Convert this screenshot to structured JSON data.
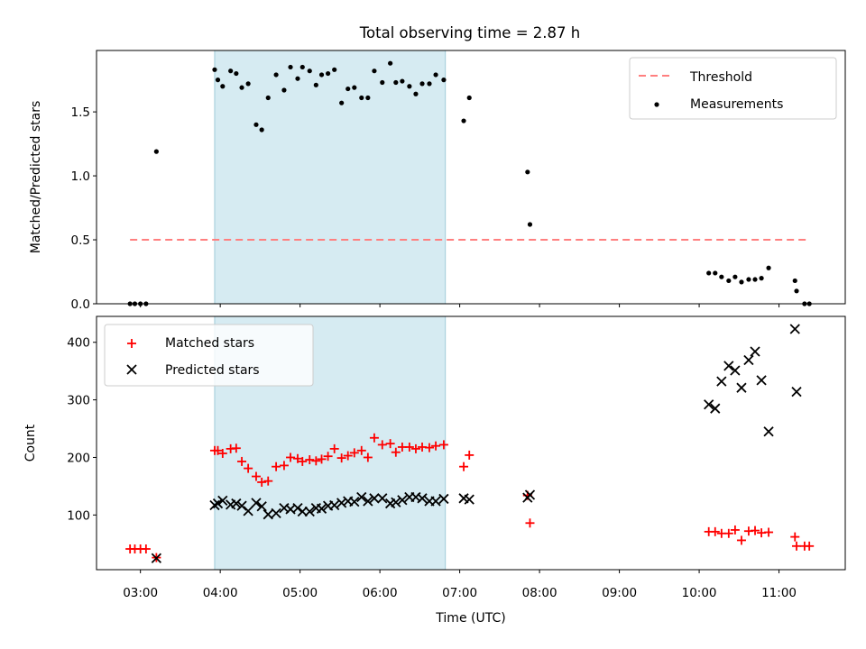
{
  "chart_data": {
    "type": "scatter",
    "title": "Total observing time = 2.87 h",
    "xlabel": "Time (UTC)",
    "x_unit": "hours UTC",
    "xlim": [
      2.45,
      11.83
    ],
    "x_ticks": [
      3,
      4,
      5,
      6,
      7,
      8,
      9,
      10,
      11
    ],
    "x_tick_labels": [
      "03:00",
      "04:00",
      "05:00",
      "06:00",
      "07:00",
      "08:00",
      "09:00",
      "10:00",
      "11:00"
    ],
    "shaded_region": {
      "x": [
        3.93,
        6.82
      ],
      "color": "#add8e6"
    },
    "panels": [
      {
        "ylabel": "Matched/Predicted stars",
        "ylim": [
          0,
          1.98
        ],
        "y_ticks": [
          0.0,
          0.5,
          1.0,
          1.5
        ],
        "y_tick_labels": [
          "0.0",
          "0.5",
          "1.0",
          "1.5"
        ],
        "legend_position": "upper right",
        "series": [
          {
            "name": "Threshold",
            "type": "line",
            "style": "dashed",
            "color": "#ff7f7f",
            "x": [
              2.87,
              11.38
            ],
            "y": [
              0.5,
              0.5
            ]
          },
          {
            "name": "Measurements",
            "type": "scatter",
            "marker": "dot",
            "color": "#000000",
            "points": [
              [
                2.87,
                0.0
              ],
              [
                2.93,
                0.0
              ],
              [
                3.0,
                0.0
              ],
              [
                3.07,
                0.0
              ],
              [
                3.2,
                1.19
              ],
              [
                3.93,
                1.83
              ],
              [
                3.97,
                1.75
              ],
              [
                4.03,
                1.7
              ],
              [
                4.13,
                1.82
              ],
              [
                4.2,
                1.8
              ],
              [
                4.27,
                1.69
              ],
              [
                4.35,
                1.72
              ],
              [
                4.45,
                1.4
              ],
              [
                4.52,
                1.36
              ],
              [
                4.6,
                1.61
              ],
              [
                4.7,
                1.79
              ],
              [
                4.8,
                1.67
              ],
              [
                4.88,
                1.85
              ],
              [
                4.97,
                1.76
              ],
              [
                5.03,
                1.85
              ],
              [
                5.12,
                1.82
              ],
              [
                5.2,
                1.71
              ],
              [
                5.27,
                1.79
              ],
              [
                5.35,
                1.8
              ],
              [
                5.43,
                1.83
              ],
              [
                5.52,
                1.57
              ],
              [
                5.6,
                1.68
              ],
              [
                5.68,
                1.69
              ],
              [
                5.77,
                1.61
              ],
              [
                5.85,
                1.61
              ],
              [
                5.93,
                1.82
              ],
              [
                6.03,
                1.73
              ],
              [
                6.13,
                1.88
              ],
              [
                6.2,
                1.73
              ],
              [
                6.28,
                1.74
              ],
              [
                6.37,
                1.7
              ],
              [
                6.45,
                1.64
              ],
              [
                6.53,
                1.72
              ],
              [
                6.62,
                1.72
              ],
              [
                6.7,
                1.79
              ],
              [
                6.8,
                1.75
              ],
              [
                7.05,
                1.43
              ],
              [
                7.12,
                1.61
              ],
              [
                7.85,
                1.03
              ],
              [
                7.88,
                0.62
              ],
              [
                10.12,
                0.24
              ],
              [
                10.2,
                0.24
              ],
              [
                10.28,
                0.21
              ],
              [
                10.37,
                0.18
              ],
              [
                10.45,
                0.21
              ],
              [
                10.53,
                0.17
              ],
              [
                10.62,
                0.19
              ],
              [
                10.7,
                0.19
              ],
              [
                10.78,
                0.2
              ],
              [
                10.87,
                0.28
              ],
              [
                11.2,
                0.18
              ],
              [
                11.22,
                0.1
              ],
              [
                11.32,
                0.0
              ],
              [
                11.38,
                0.0
              ]
            ]
          }
        ]
      },
      {
        "ylabel": "Count",
        "ylim": [
          5,
          445
        ],
        "y_ticks": [
          100,
          200,
          300,
          400
        ],
        "y_tick_labels": [
          "100",
          "200",
          "300",
          "400"
        ],
        "legend_position": "upper left",
        "series": [
          {
            "name": "Matched stars",
            "type": "scatter",
            "marker": "plus",
            "color": "#ff0000",
            "points": [
              [
                2.87,
                41
              ],
              [
                2.93,
                41
              ],
              [
                3.0,
                41
              ],
              [
                3.07,
                41
              ],
              [
                3.2,
                26
              ],
              [
                3.93,
                212
              ],
              [
                3.97,
                212
              ],
              [
                4.03,
                207
              ],
              [
                4.13,
                215
              ],
              [
                4.2,
                216
              ],
              [
                4.27,
                193
              ],
              [
                4.35,
                181
              ],
              [
                4.45,
                167
              ],
              [
                4.52,
                157
              ],
              [
                4.6,
                159
              ],
              [
                4.7,
                184
              ],
              [
                4.8,
                186
              ],
              [
                4.88,
                200
              ],
              [
                4.97,
                198
              ],
              [
                5.03,
                193
              ],
              [
                5.12,
                196
              ],
              [
                5.2,
                194
              ],
              [
                5.27,
                197
              ],
              [
                5.35,
                202
              ],
              [
                5.43,
                215
              ],
              [
                5.52,
                199
              ],
              [
                5.6,
                203
              ],
              [
                5.68,
                208
              ],
              [
                5.77,
                212
              ],
              [
                5.85,
                200
              ],
              [
                5.93,
                234
              ],
              [
                6.03,
                222
              ],
              [
                6.13,
                224
              ],
              [
                6.2,
                209
              ],
              [
                6.28,
                218
              ],
              [
                6.37,
                218
              ],
              [
                6.45,
                215
              ],
              [
                6.53,
                218
              ],
              [
                6.62,
                217
              ],
              [
                6.7,
                220
              ],
              [
                6.8,
                222
              ],
              [
                7.05,
                184
              ],
              [
                7.12,
                204
              ],
              [
                7.85,
                134
              ],
              [
                7.88,
                86
              ],
              [
                10.12,
                71
              ],
              [
                10.2,
                71
              ],
              [
                10.28,
                68
              ],
              [
                10.37,
                68
              ],
              [
                10.45,
                74
              ],
              [
                10.53,
                56
              ],
              [
                10.62,
                72
              ],
              [
                10.7,
                73
              ],
              [
                10.78,
                69
              ],
              [
                10.87,
                70
              ],
              [
                11.2,
                62
              ],
              [
                11.22,
                46
              ],
              [
                11.32,
                46
              ],
              [
                11.38,
                46
              ]
            ]
          },
          {
            "name": "Predicted stars",
            "type": "scatter",
            "marker": "x",
            "color": "#000000",
            "points": [
              [
                3.2,
                25
              ],
              [
                3.93,
                117
              ],
              [
                3.97,
                120
              ],
              [
                4.03,
                125
              ],
              [
                4.13,
                118
              ],
              [
                4.2,
                120
              ],
              [
                4.27,
                116
              ],
              [
                4.35,
                107
              ],
              [
                4.45,
                121
              ],
              [
                4.52,
                115
              ],
              [
                4.6,
                101
              ],
              [
                4.7,
                103
              ],
              [
                4.8,
                112
              ],
              [
                4.88,
                110
              ],
              [
                4.97,
                112
              ],
              [
                5.03,
                106
              ],
              [
                5.12,
                106
              ],
              [
                5.2,
                112
              ],
              [
                5.27,
                111
              ],
              [
                5.35,
                116
              ],
              [
                5.43,
                117
              ],
              [
                5.52,
                121
              ],
              [
                5.6,
                124
              ],
              [
                5.68,
                123
              ],
              [
                5.77,
                131
              ],
              [
                5.85,
                124
              ],
              [
                5.93,
                129
              ],
              [
                6.03,
                129
              ],
              [
                6.13,
                120
              ],
              [
                6.2,
                122
              ],
              [
                6.28,
                126
              ],
              [
                6.37,
                131
              ],
              [
                6.45,
                131
              ],
              [
                6.53,
                129
              ],
              [
                6.62,
                124
              ],
              [
                6.7,
                124
              ],
              [
                6.8,
                128
              ],
              [
                7.05,
                129
              ],
              [
                7.12,
                127
              ],
              [
                7.85,
                130
              ],
              [
                7.88,
                135
              ],
              [
                10.12,
                292
              ],
              [
                10.2,
                285
              ],
              [
                10.28,
                332
              ],
              [
                10.37,
                359
              ],
              [
                10.45,
                351
              ],
              [
                10.53,
                321
              ],
              [
                10.62,
                369
              ],
              [
                10.7,
                384
              ],
              [
                10.78,
                334
              ],
              [
                10.87,
                245
              ],
              [
                11.2,
                423
              ],
              [
                11.22,
                314
              ]
            ]
          }
        ]
      }
    ]
  }
}
